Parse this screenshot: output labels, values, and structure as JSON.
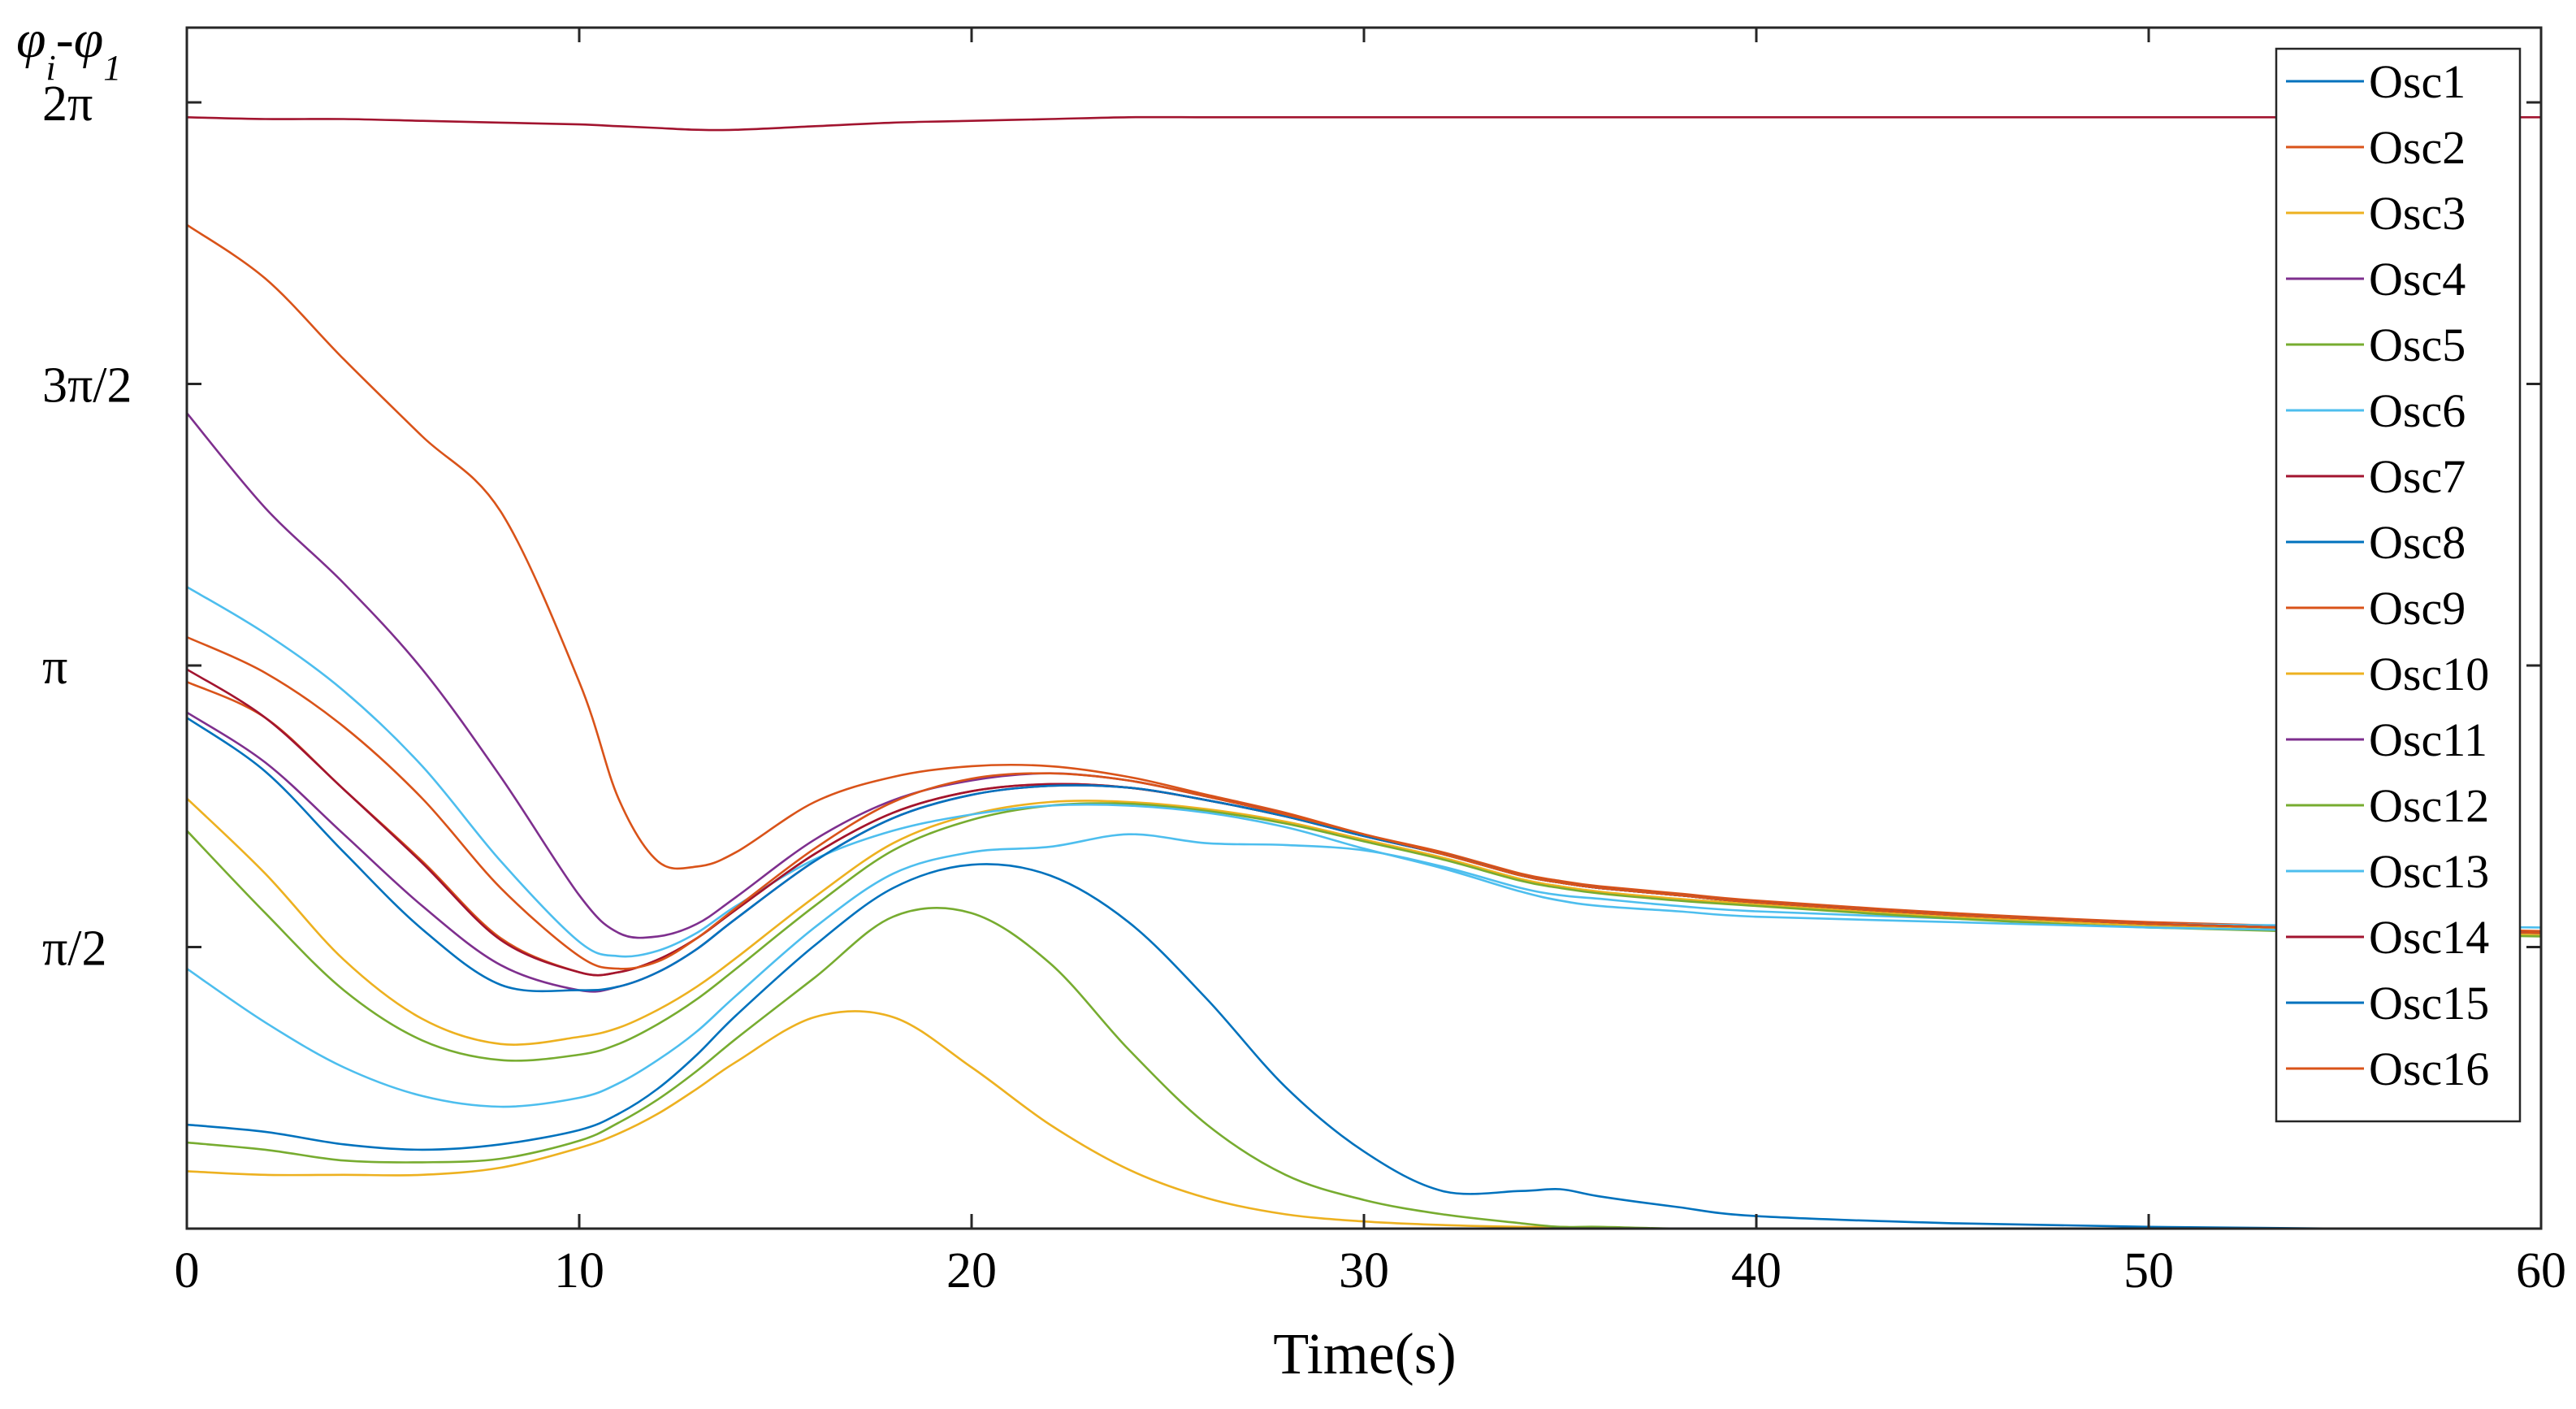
{
  "chart_data": {
    "type": "line",
    "title": "",
    "xlabel": "Time(s)",
    "ylabel": {
      "phi_left": "φ",
      "sub_left": "i",
      "minus": "-",
      "phi_right": "φ",
      "sub_right": "1"
    },
    "xlim": [
      0,
      60
    ],
    "ylim": [
      0,
      6.7
    ],
    "x_ticks": [
      {
        "value": 0,
        "label": "0"
      },
      {
        "value": 10,
        "label": "10"
      },
      {
        "value": 20,
        "label": "20"
      },
      {
        "value": 30,
        "label": "30"
      },
      {
        "value": 40,
        "label": "40"
      },
      {
        "value": 50,
        "label": "50"
      },
      {
        "value": 60,
        "label": "60"
      }
    ],
    "y_ticks": [
      {
        "value": 1.5708,
        "label": "π/2"
      },
      {
        "value": 3.1416,
        "label": "π"
      },
      {
        "value": 4.7124,
        "label": "3π/2"
      },
      {
        "value": 6.2832,
        "label": "2π"
      }
    ],
    "grid": false,
    "legend_position": "top-right",
    "x": [
      0,
      2,
      4,
      6,
      8,
      10,
      11,
      12,
      13,
      14,
      16,
      18,
      20,
      22,
      24,
      26,
      28,
      30,
      32,
      34,
      35,
      36,
      38,
      40,
      45,
      50,
      55,
      60
    ],
    "series": [
      {
        "name": "Osc1",
        "color": "#0072BD",
        "values": [
          0,
          0,
          0,
          0,
          0,
          0,
          0,
          0,
          0,
          0,
          0,
          0,
          0,
          0,
          0,
          0,
          0,
          0,
          0,
          0,
          0,
          0,
          0,
          0,
          0,
          0,
          0,
          0
        ]
      },
      {
        "name": "Osc2",
        "color": "#D95319",
        "values": [
          5.6,
          5.3,
          4.85,
          4.42,
          4.0,
          3.05,
          2.4,
          2.05,
          2.02,
          2.1,
          2.38,
          2.52,
          2.58,
          2.58,
          2.52,
          2.42,
          2.32,
          2.2,
          2.1,
          1.98,
          1.94,
          1.91,
          1.87,
          1.83,
          1.76,
          1.71,
          1.68,
          1.66
        ]
      },
      {
        "name": "Osc3",
        "color": "#EDB120",
        "values": [
          0.32,
          0.3,
          0.3,
          0.3,
          0.34,
          0.45,
          0.53,
          0.64,
          0.78,
          0.93,
          1.18,
          1.18,
          0.9,
          0.58,
          0.33,
          0.17,
          0.08,
          0.04,
          0.02,
          0.01,
          0.01,
          0,
          0,
          0,
          0,
          0,
          0,
          0
        ]
      },
      {
        "name": "Osc4",
        "color": "#7E2F8E",
        "values": [
          4.55,
          4.02,
          3.6,
          3.12,
          2.52,
          1.86,
          1.65,
          1.63,
          1.7,
          1.85,
          2.17,
          2.39,
          2.5,
          2.54,
          2.5,
          2.41,
          2.31,
          2.19,
          2.09,
          1.97,
          1.93,
          1.9,
          1.86,
          1.82,
          1.75,
          1.7,
          1.67,
          1.65
        ]
      },
      {
        "name": "Osc5",
        "color": "#77AC30",
        "values": [
          0.48,
          0.44,
          0.38,
          0.37,
          0.39,
          0.49,
          0.59,
          0.72,
          0.88,
          1.06,
          1.4,
          1.74,
          1.76,
          1.48,
          1.0,
          0.58,
          0.3,
          0.16,
          0.08,
          0.03,
          0.01,
          0.01,
          0,
          0,
          0,
          0,
          0,
          0
        ]
      },
      {
        "name": "Osc6",
        "color": "#4DBEEE",
        "values": [
          1.45,
          1.15,
          0.9,
          0.74,
          0.68,
          0.73,
          0.81,
          0.94,
          1.1,
          1.3,
          1.68,
          1.98,
          2.1,
          2.13,
          2.2,
          2.15,
          2.14,
          2.11,
          2.02,
          1.9,
          1.86,
          1.84,
          1.8,
          1.77,
          1.73,
          1.7,
          1.69,
          1.68
        ]
      },
      {
        "name": "Osc7",
        "color": "#A2142F",
        "values": [
          6.2,
          6.19,
          6.19,
          6.18,
          6.17,
          6.16,
          6.15,
          6.14,
          6.13,
          6.13,
          6.15,
          6.17,
          6.18,
          6.19,
          6.2,
          6.2,
          6.2,
          6.2,
          6.2,
          6.2,
          6.2,
          6.2,
          6.2,
          6.2,
          6.2,
          6.2,
          6.2,
          6.2
        ]
      },
      {
        "name": "Osc8",
        "color": "#0072BD",
        "values": [
          0.58,
          0.54,
          0.47,
          0.44,
          0.47,
          0.55,
          0.64,
          0.78,
          0.97,
          1.19,
          1.58,
          1.9,
          2.03,
          1.97,
          1.71,
          1.28,
          0.79,
          0.43,
          0.21,
          0.21,
          0.22,
          0.18,
          0.12,
          0.07,
          0.03,
          0.01,
          0,
          0
        ]
      },
      {
        "name": "Osc9",
        "color": "#D95319",
        "values": [
          3.05,
          2.85,
          2.45,
          2.05,
          1.62,
          1.43,
          1.43,
          1.5,
          1.62,
          1.78,
          2.09,
          2.32,
          2.44,
          2.48,
          2.46,
          2.39,
          2.3,
          2.19,
          2.09,
          1.97,
          1.93,
          1.9,
          1.86,
          1.82,
          1.75,
          1.7,
          1.67,
          1.65
        ]
      },
      {
        "name": "Osc10",
        "color": "#EDB120",
        "values": [
          2.4,
          1.98,
          1.5,
          1.17,
          1.03,
          1.07,
          1.12,
          1.22,
          1.35,
          1.51,
          1.85,
          2.15,
          2.31,
          2.38,
          2.38,
          2.34,
          2.27,
          2.17,
          2.07,
          1.95,
          1.91,
          1.88,
          1.84,
          1.81,
          1.74,
          1.69,
          1.66,
          1.64
        ]
      },
      {
        "name": "Osc11",
        "color": "#7E2F8E",
        "values": [
          2.88,
          2.6,
          2.2,
          1.8,
          1.47,
          1.33,
          1.35,
          1.43,
          1.56,
          1.73,
          2.05,
          2.29,
          2.42,
          2.47,
          2.46,
          2.39,
          2.3,
          2.19,
          2.09,
          1.97,
          1.93,
          1.9,
          1.86,
          1.82,
          1.75,
          1.7,
          1.67,
          1.65
        ]
      },
      {
        "name": "Osc12",
        "color": "#77AC30",
        "values": [
          2.22,
          1.76,
          1.33,
          1.05,
          0.94,
          0.97,
          1.03,
          1.14,
          1.28,
          1.45,
          1.8,
          2.11,
          2.28,
          2.36,
          2.37,
          2.33,
          2.26,
          2.16,
          2.06,
          1.94,
          1.9,
          1.87,
          1.83,
          1.8,
          1.73,
          1.68,
          1.65,
          1.63
        ]
      },
      {
        "name": "Osc13",
        "color": "#4DBEEE",
        "values": [
          3.58,
          3.32,
          3.0,
          2.58,
          2.05,
          1.6,
          1.52,
          1.55,
          1.65,
          1.8,
          2.06,
          2.22,
          2.31,
          2.36,
          2.36,
          2.32,
          2.24,
          2.12,
          2.01,
          1.88,
          1.83,
          1.8,
          1.77,
          1.74,
          1.71,
          1.68,
          1.66,
          1.65
        ]
      },
      {
        "name": "Osc14",
        "color": "#A2142F",
        "values": [
          3.12,
          2.85,
          2.45,
          2.04,
          1.61,
          1.43,
          1.43,
          1.5,
          1.62,
          1.78,
          2.09,
          2.32,
          2.44,
          2.48,
          2.46,
          2.39,
          2.3,
          2.19,
          2.09,
          1.97,
          1.93,
          1.9,
          1.86,
          1.82,
          1.75,
          1.7,
          1.67,
          1.65
        ]
      },
      {
        "name": "Osc15",
        "color": "#0072BD",
        "values": [
          2.85,
          2.55,
          2.1,
          1.67,
          1.36,
          1.33,
          1.35,
          1.43,
          1.56,
          1.73,
          2.05,
          2.29,
          2.42,
          2.47,
          2.46,
          2.39,
          2.3,
          2.19,
          2.09,
          1.97,
          1.93,
          1.9,
          1.86,
          1.82,
          1.75,
          1.7,
          1.67,
          1.65
        ]
      },
      {
        "name": "Osc16",
        "color": "#D95319",
        "values": [
          3.3,
          3.1,
          2.8,
          2.4,
          1.9,
          1.52,
          1.45,
          1.49,
          1.62,
          1.79,
          2.12,
          2.38,
          2.51,
          2.54,
          2.5,
          2.41,
          2.31,
          2.2,
          2.09,
          1.97,
          1.93,
          1.9,
          1.86,
          1.82,
          1.75,
          1.7,
          1.67,
          1.65
        ]
      }
    ]
  }
}
